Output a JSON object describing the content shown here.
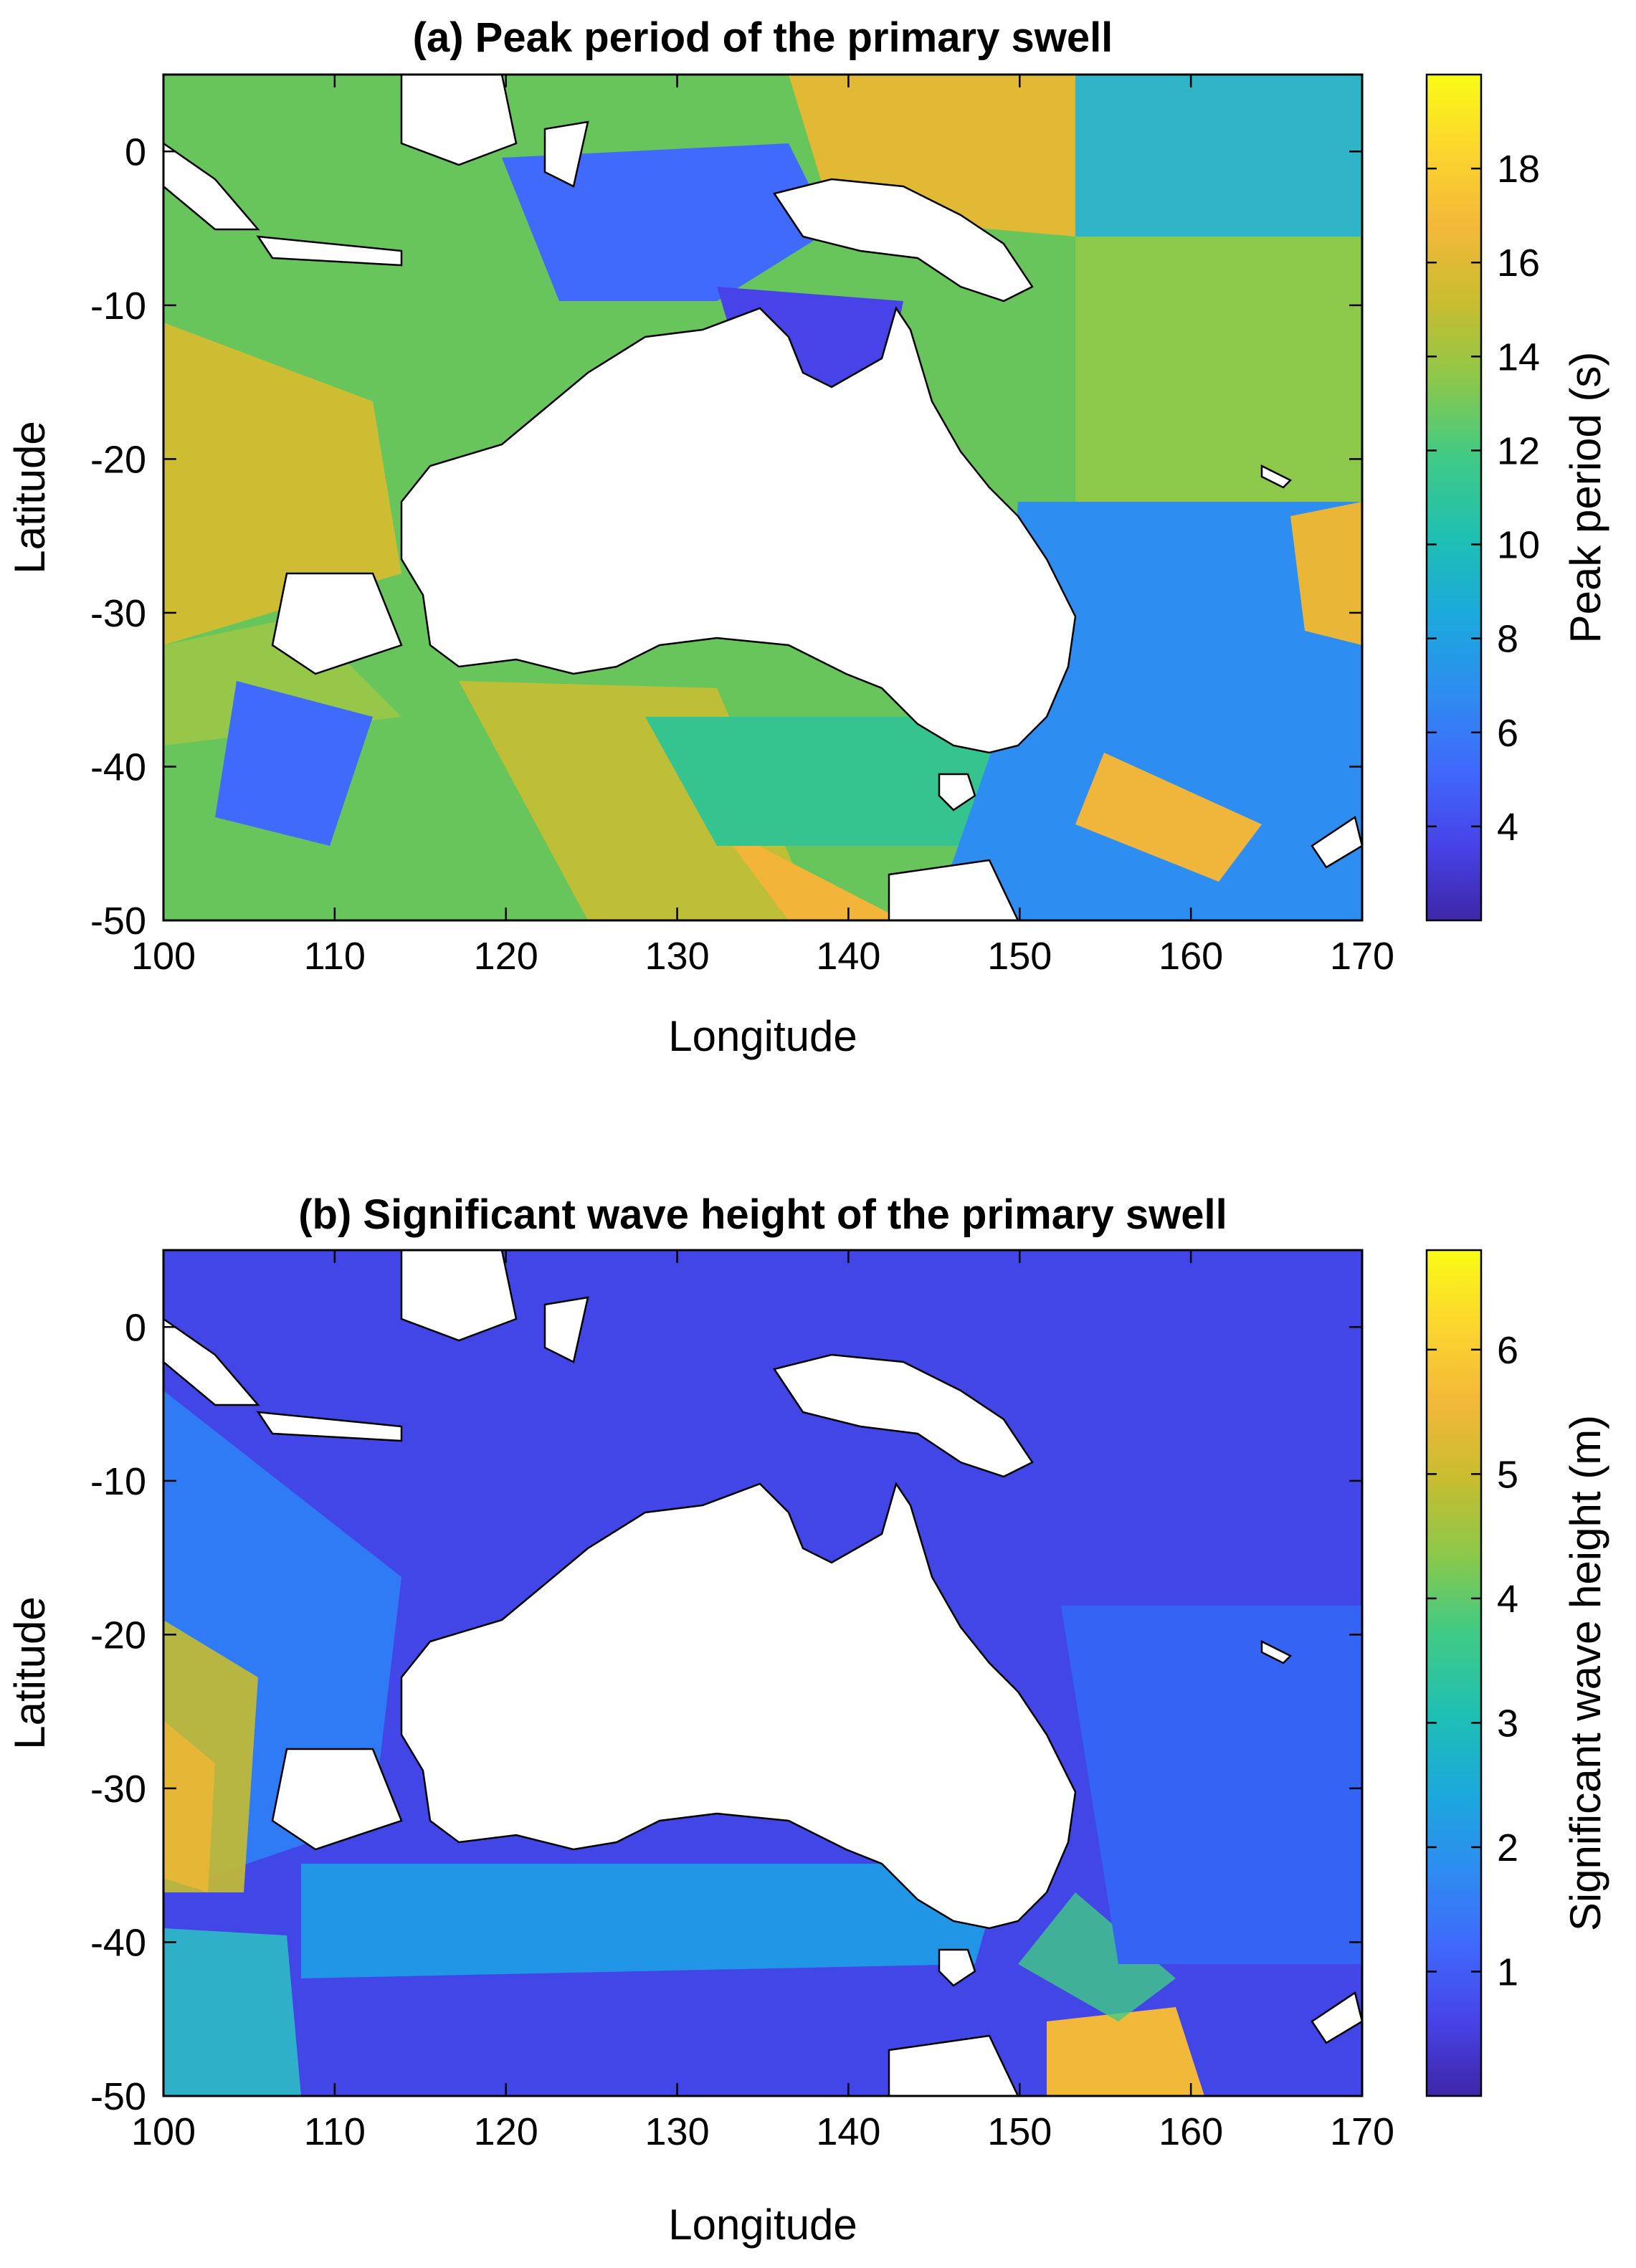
{
  "colors": {
    "land": "#ffffff",
    "coast": "#000000",
    "axes": "#000000",
    "colormap": [
      "#3e26a8",
      "#4743e9",
      "#3f6afc",
      "#2d8df0",
      "#1ba9dc",
      "#1ebfb4",
      "#41ca84",
      "#8cc84a",
      "#c8bd2f",
      "#f3b838",
      "#fcd52e",
      "#f9fb15"
    ]
  },
  "chart_data": [
    {
      "type": "heatmap",
      "title": "(a) Peak period of the primary swell",
      "xlabel": "Longitude",
      "ylabel": "Latitude",
      "xlim": [
        100,
        170
      ],
      "ylim": [
        -50,
        5
      ],
      "xticks": [
        "100",
        "110",
        "120",
        "130",
        "140",
        "150",
        "160",
        "170"
      ],
      "yticks": [
        "0",
        "-10",
        "-20",
        "-30",
        "-40",
        "-50"
      ],
      "colorbar": {
        "label": "Peak period (s)",
        "range": [
          2,
          20
        ],
        "ticks": [
          "4",
          "6",
          "8",
          "10",
          "12",
          "14",
          "16",
          "18"
        ]
      },
      "regions": [
        {
          "lon": [
            100,
            113
          ],
          "lat": [
            -25,
            -10
          ],
          "value": 15
        },
        {
          "lon": [
            113,
            130
          ],
          "lat": [
            -50,
            -30
          ],
          "value": 14
        },
        {
          "lon": [
            130,
            150
          ],
          "lat": [
            -50,
            -35
          ],
          "value": 14
        },
        {
          "lon": [
            140,
            148
          ],
          "lat": [
            -5,
            5
          ],
          "value": 17
        },
        {
          "lon": [
            152,
            168
          ],
          "lat": [
            -25,
            -5
          ],
          "value": 13.5
        },
        {
          "lon": [
            152,
            170
          ],
          "lat": [
            -45,
            -30
          ],
          "value": 8
        },
        {
          "lon": [
            120,
            140
          ],
          "lat": [
            -12,
            0
          ],
          "value": 7
        },
        {
          "lon": [
            155,
            162
          ],
          "lat": [
            -45,
            -40
          ],
          "value": 16
        }
      ]
    },
    {
      "type": "heatmap",
      "title": "(b) Significant wave height of the primary swell",
      "xlabel": "Longitude",
      "ylabel": "Latitude",
      "xlim": [
        100,
        170
      ],
      "ylim": [
        -50,
        5
      ],
      "xticks": [
        "100",
        "110",
        "120",
        "130",
        "140",
        "150",
        "160",
        "170"
      ],
      "yticks": [
        "0",
        "-10",
        "-20",
        "-30",
        "-40",
        "-50"
      ],
      "colorbar": {
        "label": "Significant wave height (m)",
        "range": [
          0,
          6.8
        ],
        "ticks": [
          "1",
          "2",
          "3",
          "4",
          "5",
          "6"
        ]
      },
      "regions": [
        {
          "lon": [
            100,
            105
          ],
          "lat": [
            -35,
            -18
          ],
          "value": 4.5
        },
        {
          "lon": [
            100,
            113
          ],
          "lat": [
            -30,
            -10
          ],
          "value": 2.2
        },
        {
          "lon": [
            105,
            140
          ],
          "lat": [
            -45,
            -35
          ],
          "value": 2.5
        },
        {
          "lon": [
            150,
            158
          ],
          "lat": [
            -50,
            -45
          ],
          "value": 5
        },
        {
          "lon": [
            130,
            170
          ],
          "lat": [
            -10,
            5
          ],
          "value": 0.8
        },
        {
          "lon": [
            150,
            170
          ],
          "lat": [
            -40,
            -10
          ],
          "value": 1.2
        }
      ]
    }
  ]
}
